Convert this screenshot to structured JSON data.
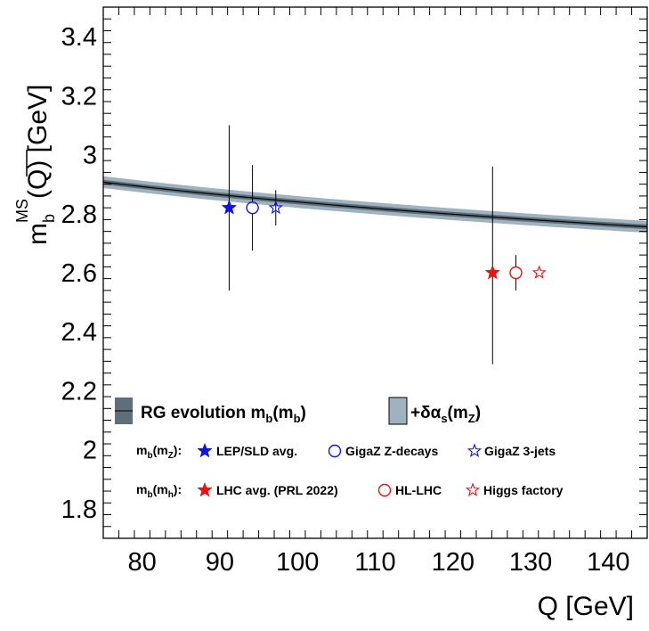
{
  "chart_data": {
    "type": "scatter",
    "xlabel": "Q [GeV]",
    "ylabel_main": "m",
    "ylabel_sub": "b",
    "ylabel_sup": "MS",
    "ylabel_rest": "(Q) [GeV]",
    "xlim": [
      75,
      145
    ],
    "ylim": [
      1.7,
      3.5
    ],
    "x_ticks": [
      80,
      90,
      100,
      110,
      120,
      130,
      140
    ],
    "y_ticks": [
      1.8,
      2.0,
      2.2,
      2.4,
      2.6,
      2.8,
      3.0,
      3.2,
      3.4
    ],
    "x_tick_labels": [
      "80",
      "90",
      "100",
      "110",
      "120",
      "130",
      "140"
    ],
    "y_tick_labels": [
      "1.8",
      "2",
      "2.2",
      "2.4",
      "2.6",
      "2.8",
      "3",
      "3.2",
      "3.4"
    ],
    "grid": false,
    "band": {
      "x": [
        75,
        80,
        85,
        90,
        95,
        100,
        105,
        110,
        115,
        120,
        125,
        130,
        135,
        140,
        145
      ],
      "center": [
        2.907,
        2.886,
        2.867,
        2.85,
        2.835,
        2.821,
        2.808,
        2.796,
        2.785,
        2.775,
        2.795,
        2.782,
        2.77,
        2.76,
        2.754
      ],
      "inner_halfwidth": 0.008,
      "outer_halfwidth": 0.02
    },
    "points": [
      {
        "x": 91.2,
        "y": 2.82,
        "err_low": 0.28,
        "err_high": 0.28,
        "marker": "star-filled",
        "color": "#1010e8"
      },
      {
        "x": 94.2,
        "y": 2.82,
        "err_low": 0.145,
        "err_high": 0.145,
        "marker": "circle-open",
        "color": "#1010e8"
      },
      {
        "x": 97.2,
        "y": 2.82,
        "err_low": 0.06,
        "err_high": 0.06,
        "marker": "star-open",
        "color": "#1010e8"
      },
      {
        "x": 125.1,
        "y": 2.6,
        "err_low": 0.31,
        "err_high": 0.36,
        "marker": "star-filled",
        "color": "#ee1111"
      },
      {
        "x": 128.1,
        "y": 2.6,
        "err_low": 0.06,
        "err_high": 0.06,
        "marker": "circle-open",
        "color": "#ee1111"
      },
      {
        "x": 131.1,
        "y": 2.6,
        "err_low": 0,
        "err_high": 0,
        "marker": "star-open",
        "color": "#ee1111"
      }
    ],
    "colors": {
      "band_outer": "#9fb2bf",
      "band_inner": "#5f6f7a",
      "line": "#000000",
      "blue": "#1010e8",
      "red": "#ee1111"
    }
  },
  "legend": {
    "rg_label": "RG evolution m",
    "rg_sub1": "b",
    "rg_mid": "(m",
    "rg_sub2": "b",
    "rg_end": ")",
    "alpha_label": "+δα",
    "alpha_sub1": "s",
    "alpha_mid": "(m",
    "alpha_sub2": "Z",
    "alpha_end": ")",
    "row1_prefix": "m",
    "row1_sub": "b",
    "row1_mid": "(m",
    "row1_sub2": "Z",
    "row1_end": "):",
    "row1_items": [
      "LEP/SLD avg.",
      "GigaZ Z-decays",
      "GigaZ 3-jets"
    ],
    "row2_prefix": "m",
    "row2_sub": "b",
    "row2_mid": "(m",
    "row2_sub2": "h",
    "row2_end": "):",
    "row2_items": [
      "LHC avg. (PRL 2022)",
      "HL-LHC",
      "Higgs factory"
    ]
  }
}
